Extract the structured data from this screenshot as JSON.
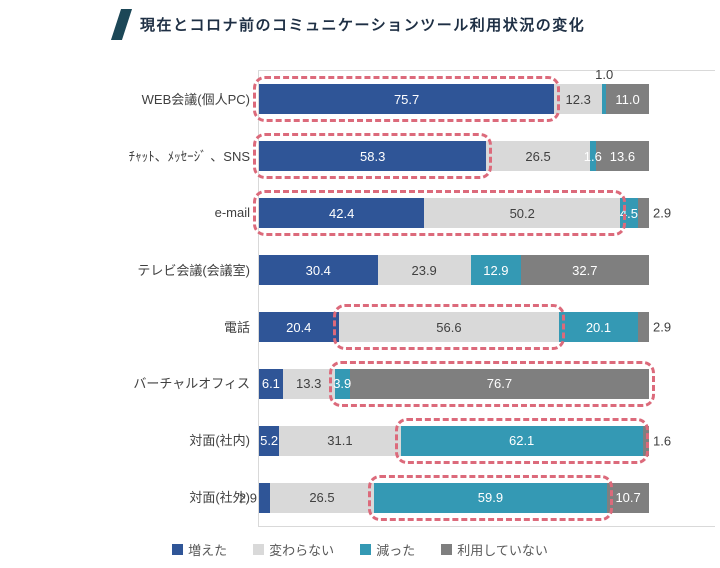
{
  "title": {
    "text": "現在とコロナ前のコミュニケーションツール利用状況の変化"
  },
  "colors": {
    "increase_blue": "#2F5597",
    "unchanged_gray": "#D9D9D9",
    "decrease_teal": "#3499B4",
    "notused_gray": "#7F7F7F",
    "highlight_pink": "#DC6A7B",
    "title_navy": "#1E2F44",
    "title_slash_teal": "#1C4757",
    "label_dark": "#404040",
    "legend_text": "#595959",
    "axis_line": "#D9D9D9"
  },
  "chart_data": {
    "type": "bar",
    "orientation": "horizontal",
    "stacked": true,
    "unit": "%",
    "xlim": [
      0,
      100
    ],
    "grid": false,
    "title": "現在とコロナ前のコミュニケーションツール利用状況の変化",
    "categories": [
      "WEB会議(個人PC)",
      "ﾁｬｯﾄ、ﾒｯｾｰｼﾞ 、SNS",
      "e-mail",
      "テレビ会議(会議室)",
      "電話",
      "バーチャルオフィス",
      "対面(社内)",
      "対面(社外)"
    ],
    "series": [
      {
        "name": "増えた",
        "color": "#2F5597",
        "values": [
          75.7,
          58.3,
          42.4,
          30.4,
          20.4,
          6.1,
          5.2,
          2.9
        ]
      },
      {
        "name": "変わらない",
        "color": "#D9D9D9",
        "values": [
          12.3,
          26.5,
          50.2,
          23.9,
          56.6,
          13.3,
          31.1,
          26.5
        ]
      },
      {
        "name": "減った",
        "color": "#3499B4",
        "values": [
          1.0,
          1.6,
          4.5,
          12.9,
          20.1,
          3.9,
          62.1,
          59.9
        ]
      },
      {
        "name": "利用していない",
        "color": "#7F7F7F",
        "values": [
          11.0,
          13.6,
          2.9,
          32.7,
          2.9,
          76.7,
          1.6,
          10.7
        ]
      }
    ],
    "legend": [
      "増えた",
      "変わらない",
      "減った",
      "利用していない"
    ],
    "legend_position": "bottom",
    "value_labels": "one_decimal",
    "outside_labels": [
      {
        "row": 0,
        "series": 2,
        "position": "above"
      },
      {
        "row": 2,
        "series": 3,
        "position": "right"
      },
      {
        "row": 4,
        "series": 3,
        "position": "right"
      },
      {
        "row": 6,
        "series": 3,
        "position": "right"
      },
      {
        "row": 7,
        "series": 0,
        "position": "left"
      }
    ],
    "highlights": [
      {
        "row": 0,
        "from": 0,
        "to": 75.7
      },
      {
        "row": 1,
        "from": 0,
        "to": 58.3
      },
      {
        "row": 2,
        "from": 0,
        "to": 92.6
      },
      {
        "row": 4,
        "from": 20.4,
        "to": 77.0
      },
      {
        "row": 5,
        "from": 19.4,
        "to": 100.0
      },
      {
        "row": 6,
        "from": 36.3,
        "to": 98.4
      },
      {
        "row": 7,
        "from": 29.4,
        "to": 89.3
      }
    ]
  }
}
